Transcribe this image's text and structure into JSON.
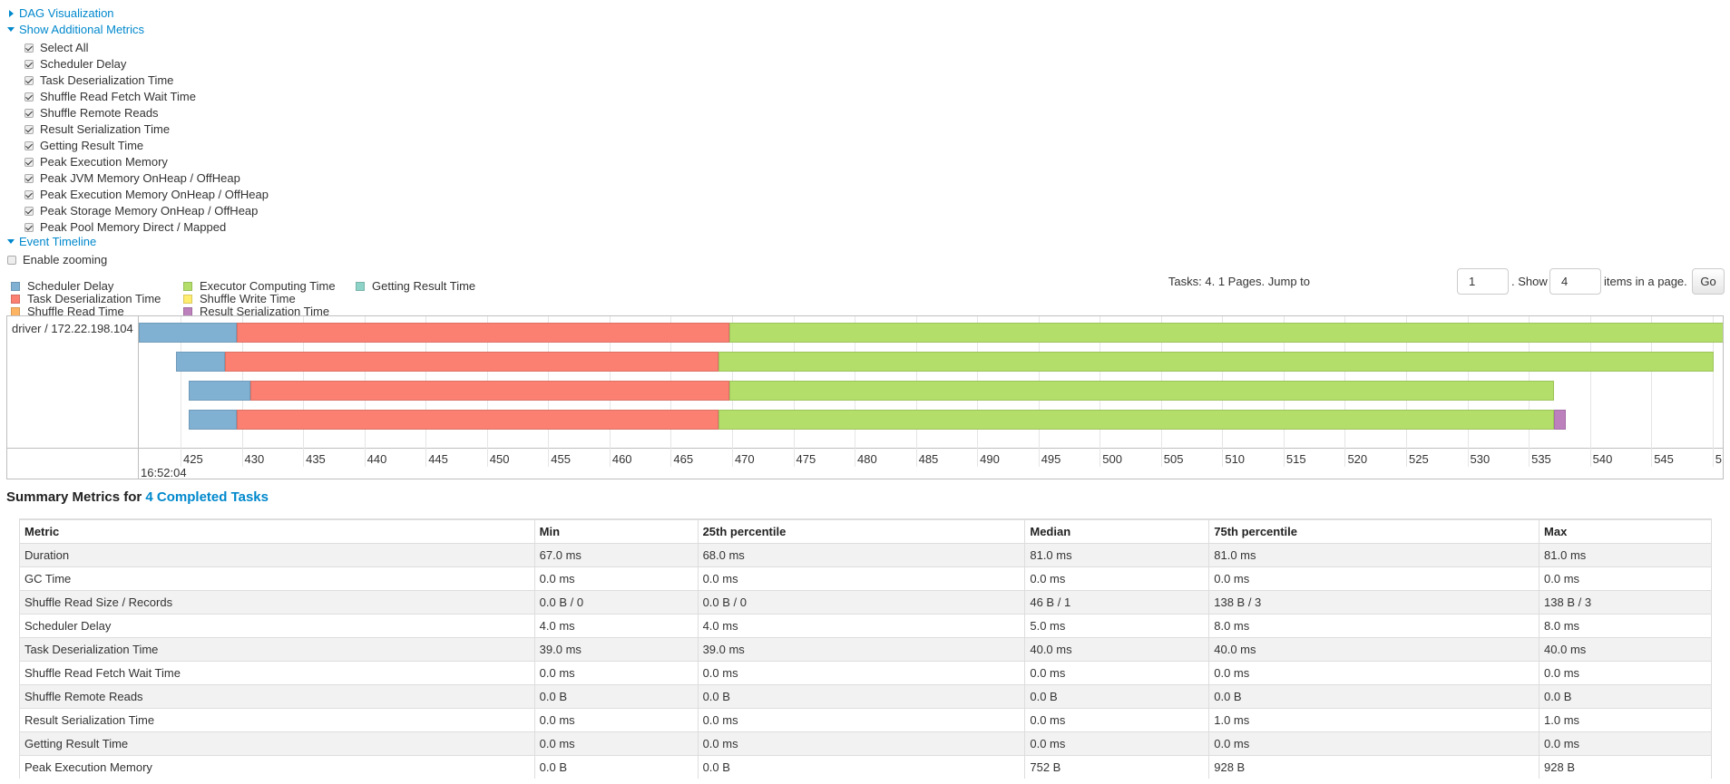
{
  "sections": {
    "dag": "DAG Visualization",
    "additional_metrics": "Show Additional Metrics",
    "event_timeline": "Event Timeline"
  },
  "metrics_checkboxes": [
    {
      "label": "Select All",
      "checked": true
    },
    {
      "label": "Scheduler Delay",
      "checked": true
    },
    {
      "label": "Task Deserialization Time",
      "checked": true
    },
    {
      "label": "Shuffle Read Fetch Wait Time",
      "checked": true
    },
    {
      "label": "Shuffle Remote Reads",
      "checked": true
    },
    {
      "label": "Result Serialization Time",
      "checked": true
    },
    {
      "label": "Getting Result Time",
      "checked": true
    },
    {
      "label": "Peak Execution Memory",
      "checked": true
    },
    {
      "label": "Peak JVM Memory OnHeap / OffHeap",
      "checked": true
    },
    {
      "label": "Peak Execution Memory OnHeap / OffHeap",
      "checked": true
    },
    {
      "label": "Peak Storage Memory OnHeap / OffHeap",
      "checked": true
    },
    {
      "label": "Peak Pool Memory Direct / Mapped",
      "checked": true
    }
  ],
  "enable_zooming": {
    "label": "Enable zooming",
    "checked": false
  },
  "legend": [
    {
      "label": "Scheduler Delay",
      "color": "#80b1d3"
    },
    {
      "label": "Task Deserialization Time",
      "color": "#fb8072"
    },
    {
      "label": "Shuffle Read Time",
      "color": "#fdb462"
    },
    {
      "label": "Executor Computing Time",
      "color": "#b3de69"
    },
    {
      "label": "Shuffle Write Time",
      "color": "#ffed6f"
    },
    {
      "label": "Result Serialization Time",
      "color": "#bc80bd"
    },
    {
      "label": "Getting Result Time",
      "color": "#8dd3c7"
    }
  ],
  "pagination": {
    "prefix": "Tasks: 4. 1 Pages. Jump to",
    "page_value": "1",
    "show_label": ". Show",
    "page_size_value": "4",
    "suffix": "items in a page.",
    "go": "Go"
  },
  "timeline": {
    "executor_label": "driver / 172.22.198.104",
    "date_label": "16:52:04",
    "axis_ticks": [
      "425",
      "430",
      "435",
      "440",
      "445",
      "450",
      "455",
      "460",
      "465",
      "470",
      "475",
      "480",
      "485",
      "490",
      "495",
      "500",
      "505",
      "510",
      "515",
      "520",
      "525",
      "530",
      "535",
      "540",
      "545",
      "5"
    ],
    "tasks": [
      {
        "segments": [
          {
            "type": "Scheduler Delay",
            "from": 421.6,
            "to": 429.6
          },
          {
            "type": "Task Deserialization Time",
            "from": 429.6,
            "to": 469.8
          },
          {
            "type": "Executor Computing Time",
            "from": 469.8,
            "to": 552
          }
        ]
      },
      {
        "segments": [
          {
            "type": "Scheduler Delay",
            "from": 424.6,
            "to": 428.6
          },
          {
            "type": "Task Deserialization Time",
            "from": 428.6,
            "to": 468.9
          },
          {
            "type": "Executor Computing Time",
            "from": 468.9,
            "to": 550.1
          }
        ]
      },
      {
        "segments": [
          {
            "type": "Scheduler Delay",
            "from": 425.7,
            "to": 430.7
          },
          {
            "type": "Task Deserialization Time",
            "from": 430.7,
            "to": 469.8
          },
          {
            "type": "Executor Computing Time",
            "from": 469.8,
            "to": 537.1
          }
        ]
      },
      {
        "segments": [
          {
            "type": "Scheduler Delay",
            "from": 425.7,
            "to": 429.6
          },
          {
            "type": "Task Deserialization Time",
            "from": 429.6,
            "to": 468.9
          },
          {
            "type": "Executor Computing Time",
            "from": 468.9,
            "to": 537.1
          },
          {
            "type": "Result Serialization Time",
            "from": 537.1,
            "to": 538.0
          }
        ]
      }
    ]
  },
  "summary": {
    "title_prefix": "Summary Metrics for",
    "title_link": "4 Completed Tasks",
    "columns": [
      "Metric",
      "Min",
      "25th percentile",
      "Median",
      "75th percentile",
      "Max"
    ],
    "rows": [
      [
        "Duration",
        "67.0 ms",
        "68.0 ms",
        "81.0 ms",
        "81.0 ms",
        "81.0 ms"
      ],
      [
        "GC Time",
        "0.0 ms",
        "0.0 ms",
        "0.0 ms",
        "0.0 ms",
        "0.0 ms"
      ],
      [
        "Shuffle Read Size / Records",
        "0.0 B / 0",
        "0.0 B / 0",
        "46 B / 1",
        "138 B / 3",
        "138 B / 3"
      ],
      [
        "Scheduler Delay",
        "4.0 ms",
        "4.0 ms",
        "5.0 ms",
        "8.0 ms",
        "8.0 ms"
      ],
      [
        "Task Deserialization Time",
        "39.0 ms",
        "39.0 ms",
        "40.0 ms",
        "40.0 ms",
        "40.0 ms"
      ],
      [
        "Shuffle Read Fetch Wait Time",
        "0.0 ms",
        "0.0 ms",
        "0.0 ms",
        "0.0 ms",
        "0.0 ms"
      ],
      [
        "Shuffle Remote Reads",
        "0.0 B",
        "0.0 B",
        "0.0 B",
        "0.0 B",
        "0.0 B"
      ],
      [
        "Result Serialization Time",
        "0.0 ms",
        "0.0 ms",
        "0.0 ms",
        "1.0 ms",
        "1.0 ms"
      ],
      [
        "Getting Result Time",
        "0.0 ms",
        "0.0 ms",
        "0.0 ms",
        "0.0 ms",
        "0.0 ms"
      ],
      [
        "Peak Execution Memory",
        "0.0 B",
        "0.0 B",
        "752 B",
        "928 B",
        "928 B"
      ]
    ]
  }
}
